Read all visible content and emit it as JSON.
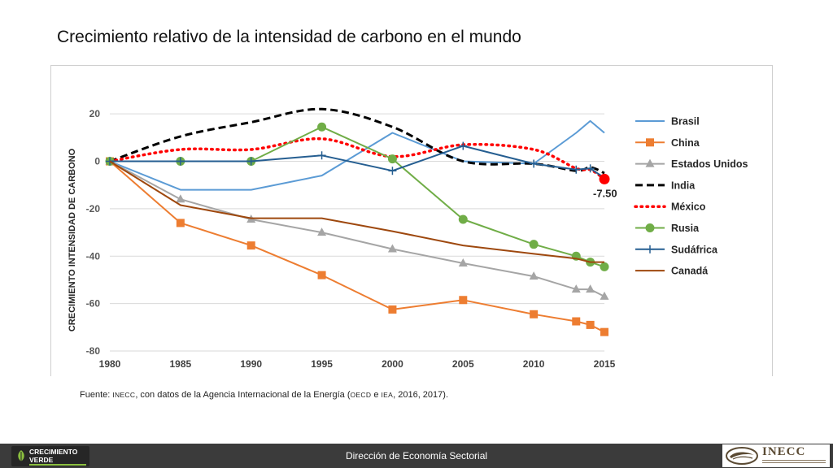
{
  "slide": {
    "title": "Crecimiento relativo de la intensidad de carbono en el mundo",
    "source": {
      "prefix": "Fuente: ",
      "org1": "INECC",
      "mid1": ", con datos de la Agencia Internacional de la Energía (",
      "org2": "OECD",
      "mid2": " e ",
      "org3": "IEA",
      "suffix": ", 2016, 2017)."
    },
    "footer": {
      "center": "Dirección de Economía Sectorial",
      "logo_left": [
        "CRECIMIENTO",
        "VERDE"
      ],
      "logo_right": "INECC"
    }
  },
  "chart_data": {
    "type": "line",
    "title": "",
    "xlabel": "",
    "ylabel": "CRECIMIENTO INTENSIDAD DE CARBONO",
    "xlim": [
      1980,
      2015
    ],
    "ylim": [
      -80,
      30
    ],
    "xticks": [
      1980,
      1985,
      1990,
      1995,
      2000,
      2005,
      2010,
      2015
    ],
    "yticks": [
      20,
      0,
      -20,
      -40,
      -60,
      -80
    ],
    "grid": true,
    "legend_position": "right",
    "annotations": [
      {
        "text": "-7.50",
        "x": 2015,
        "y": -7.5
      }
    ],
    "series": [
      {
        "name": "Brasil",
        "color": "#5b9bd5",
        "style": "solid",
        "marker": "none",
        "points": [
          [
            1980,
            0
          ],
          [
            1985,
            -12
          ],
          [
            1990,
            -12
          ],
          [
            1995,
            -6
          ],
          [
            2000,
            12
          ],
          [
            2005,
            0
          ],
          [
            2010,
            -1
          ],
          [
            2013,
            12
          ],
          [
            2014,
            17
          ],
          [
            2015,
            12
          ]
        ]
      },
      {
        "name": "China",
        "color": "#ed7d31",
        "style": "solid",
        "marker": "square",
        "points": [
          [
            1980,
            0
          ],
          [
            1985,
            -26
          ],
          [
            1990,
            -35.5
          ],
          [
            1995,
            -48
          ],
          [
            2000,
            -62.5
          ],
          [
            2005,
            -58.5
          ],
          [
            2010,
            -64.5
          ],
          [
            2013,
            -67.5
          ],
          [
            2014,
            -69
          ],
          [
            2015,
            -72
          ]
        ]
      },
      {
        "name": "Estados Unidos",
        "color": "#a5a5a5",
        "style": "solid",
        "marker": "triangle",
        "points": [
          [
            1980,
            0
          ],
          [
            1985,
            -16
          ],
          [
            1990,
            -24.5
          ],
          [
            1995,
            -30
          ],
          [
            2000,
            -37
          ],
          [
            2005,
            -43
          ],
          [
            2010,
            -48.5
          ],
          [
            2013,
            -54
          ],
          [
            2014,
            -54
          ],
          [
            2015,
            -57
          ]
        ]
      },
      {
        "name": "India",
        "color": "#000000",
        "style": "dash",
        "marker": "none",
        "points": [
          [
            1980,
            0
          ],
          [
            1985,
            10.5
          ],
          [
            1990,
            16.5
          ],
          [
            1995,
            22
          ],
          [
            2000,
            14.5
          ],
          [
            2005,
            0
          ],
          [
            2010,
            -1
          ],
          [
            2013,
            -4
          ],
          [
            2014,
            -2.5
          ],
          [
            2015,
            -5
          ]
        ]
      },
      {
        "name": "México",
        "color": "#ff0000",
        "style": "dot",
        "marker": "none",
        "points": [
          [
            1980,
            0
          ],
          [
            1985,
            5
          ],
          [
            1990,
            5
          ],
          [
            1995,
            9.5
          ],
          [
            2000,
            2
          ],
          [
            2005,
            7
          ],
          [
            2010,
            5
          ],
          [
            2013,
            -3
          ],
          [
            2014,
            -3.5
          ],
          [
            2015,
            -7.5
          ]
        ]
      },
      {
        "name": "Rusia",
        "color": "#70ad47",
        "style": "solid",
        "marker": "circle",
        "points": [
          [
            1980,
            0
          ],
          [
            1985,
            0
          ],
          [
            1990,
            0
          ],
          [
            1995,
            14.5
          ],
          [
            2000,
            1
          ],
          [
            2005,
            -24.5
          ],
          [
            2010,
            -35
          ],
          [
            2013,
            -40
          ],
          [
            2014,
            -42.5
          ],
          [
            2015,
            -44.5
          ]
        ]
      },
      {
        "name": "Sudáfrica",
        "color": "#255e91",
        "style": "solid",
        "marker": "plus",
        "points": [
          [
            1980,
            0
          ],
          [
            1985,
            0
          ],
          [
            1990,
            0
          ],
          [
            1995,
            2.5
          ],
          [
            2000,
            -4
          ],
          [
            2005,
            6.5
          ],
          [
            2010,
            -1
          ],
          [
            2013,
            -3.5
          ],
          [
            2014,
            -3
          ],
          [
            2015,
            -7
          ]
        ]
      },
      {
        "name": "Canadá",
        "color": "#9e480e",
        "style": "solid",
        "marker": "none",
        "points": [
          [
            1980,
            0
          ],
          [
            1985,
            -18.5
          ],
          [
            1990,
            -24
          ],
          [
            1995,
            -24
          ],
          [
            2000,
            -29.5
          ],
          [
            2005,
            -35.5
          ],
          [
            2010,
            -39
          ],
          [
            2013,
            -41
          ],
          [
            2014,
            -42.5
          ],
          [
            2015,
            -42.5
          ]
        ]
      }
    ]
  }
}
